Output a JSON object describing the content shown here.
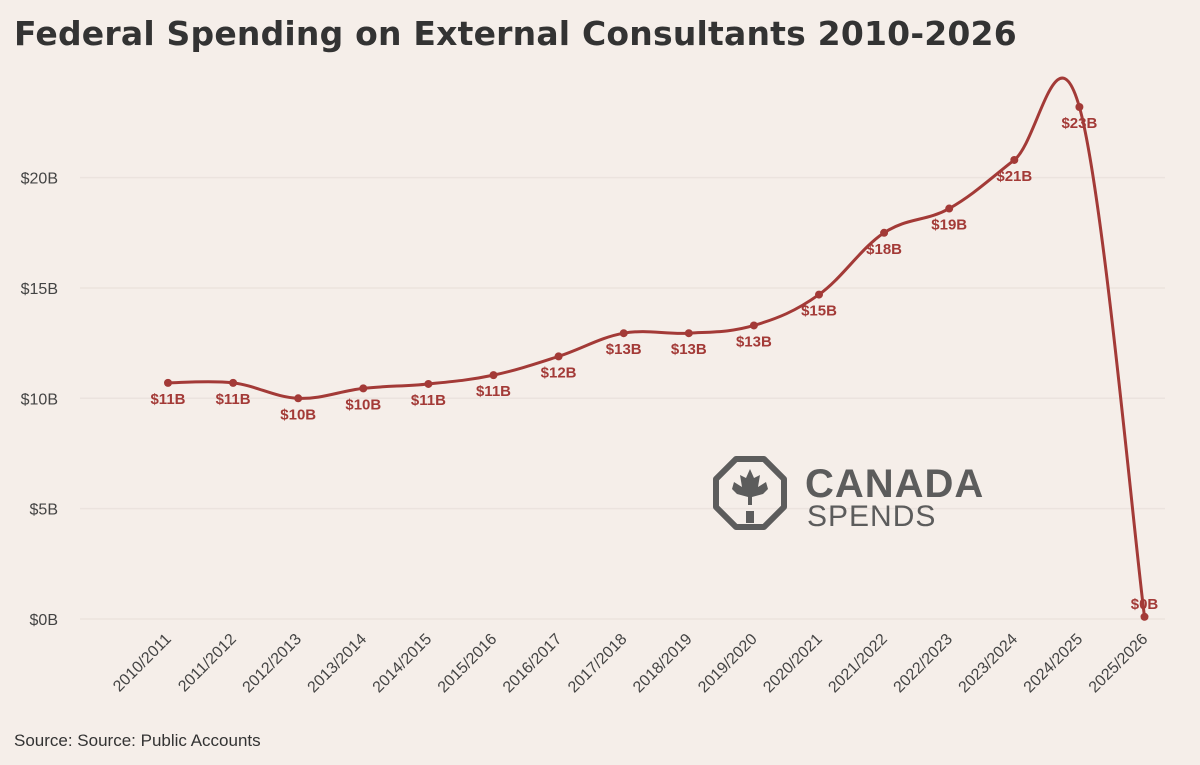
{
  "title": "Federal Spending on External Consultants 2010-2026",
  "source": "Source: Source: Public Accounts",
  "logo": {
    "line1": "CANADA",
    "line2": "SPENDS"
  },
  "colors": {
    "line": "#a33a37",
    "background": "#f5eee9",
    "grid": "#ebe3de",
    "logo": "#5c5c5c"
  },
  "chart_data": {
    "type": "line",
    "title": "Federal Spending on External Consultants 2010-2026",
    "categories": [
      "2010/2011",
      "2011/2012",
      "2012/2013",
      "2013/2014",
      "2014/2015",
      "2015/2016",
      "2016/2017",
      "2017/2018",
      "2018/2019",
      "2019/2020",
      "2020/2021",
      "2021/2022",
      "2022/2023",
      "2023/2024",
      "2024/2025",
      "2025/2026"
    ],
    "values": [
      10.7,
      10.7,
      10.0,
      10.45,
      10.65,
      11.05,
      11.9,
      12.95,
      12.95,
      13.3,
      14.7,
      17.5,
      18.6,
      20.8,
      23.2,
      0.1
    ],
    "data_labels": [
      "$11B",
      "$11B",
      "$10B",
      "$10B",
      "$11B",
      "$11B",
      "$12B",
      "$13B",
      "$13B",
      "$13B",
      "$15B",
      "$18B",
      "$19B",
      "$21B",
      "$23B",
      "$0B"
    ],
    "ylim": [
      0,
      23.2
    ],
    "yticks": [
      0,
      5,
      10,
      15,
      20
    ],
    "ytick_labels": [
      "$0B",
      "$5B",
      "$10B",
      "$15B",
      "$20B"
    ],
    "grid": true,
    "legend": "none"
  }
}
